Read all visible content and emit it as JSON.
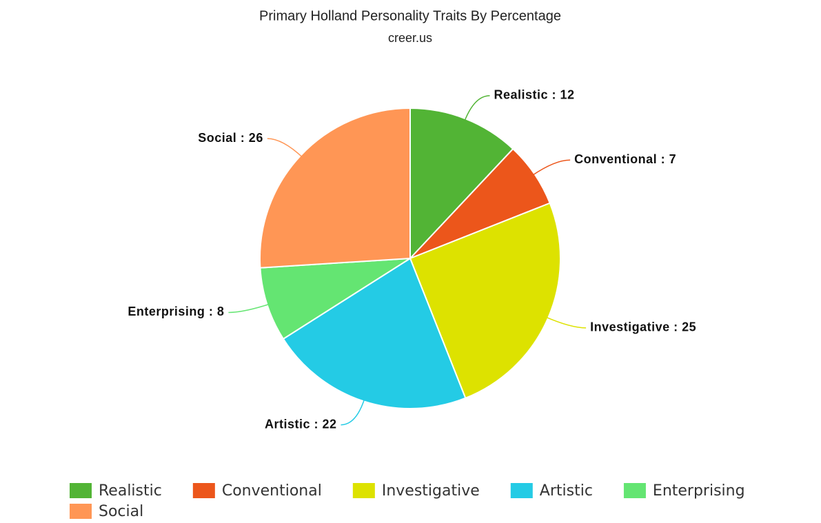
{
  "chart_data": {
    "type": "pie",
    "title": "Primary Holland Personality Traits By Percentage",
    "subtitle": "creer.us",
    "categories": [
      "Realistic",
      "Conventional",
      "Investigative",
      "Artistic",
      "Enterprising",
      "Social"
    ],
    "values": [
      12,
      7,
      25,
      22,
      8,
      26
    ],
    "value_labels": [
      "Realistic : 12",
      "Conventional : 7",
      "Investigative : 25",
      "Artistic : 22",
      "Enterprising : 8",
      "Social : 26"
    ],
    "colors": [
      "#52b435",
      "#ec561b",
      "#dde200",
      "#24cbe5",
      "#64e572",
      "#ff9655"
    ],
    "legend": "bottom"
  }
}
